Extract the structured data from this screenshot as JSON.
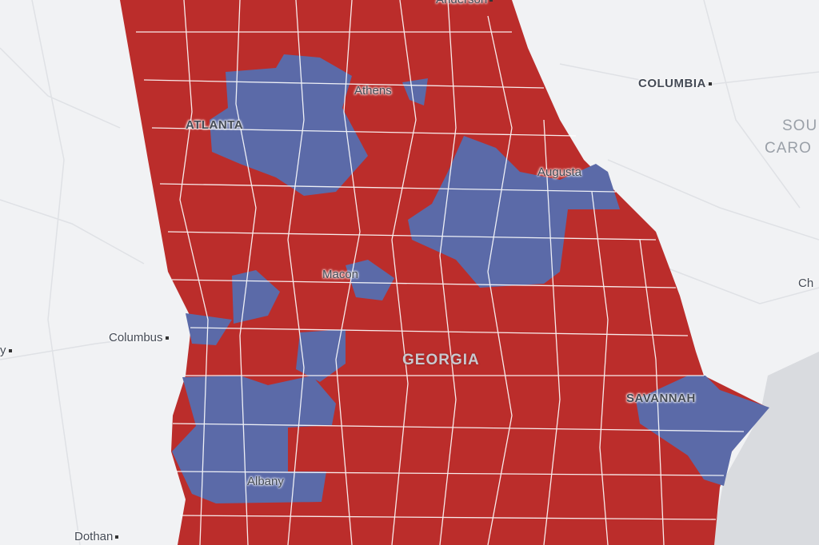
{
  "colors": {
    "background": "#f1f2f4",
    "ocean": "#d9dbdf",
    "republican": "#bb2d2b",
    "democratic": "#5b6aa8",
    "county_border": "#ffffff"
  },
  "labels": {
    "anderson": "Anderson",
    "columbia": "COLUMBIA",
    "south_carolina_1": "SOU",
    "south_carolina_2": "CARO",
    "charleston": "Ch",
    "athens": "Athens",
    "atlanta": "ATLANTA",
    "augusta": "Augusta",
    "macon": "Macon",
    "columbus": "Columbus",
    "georgia": "GEORGIA",
    "savannah": "SAVANNAH",
    "albany": "Albany",
    "dothan": "Dothan",
    "left_edge": "y"
  }
}
